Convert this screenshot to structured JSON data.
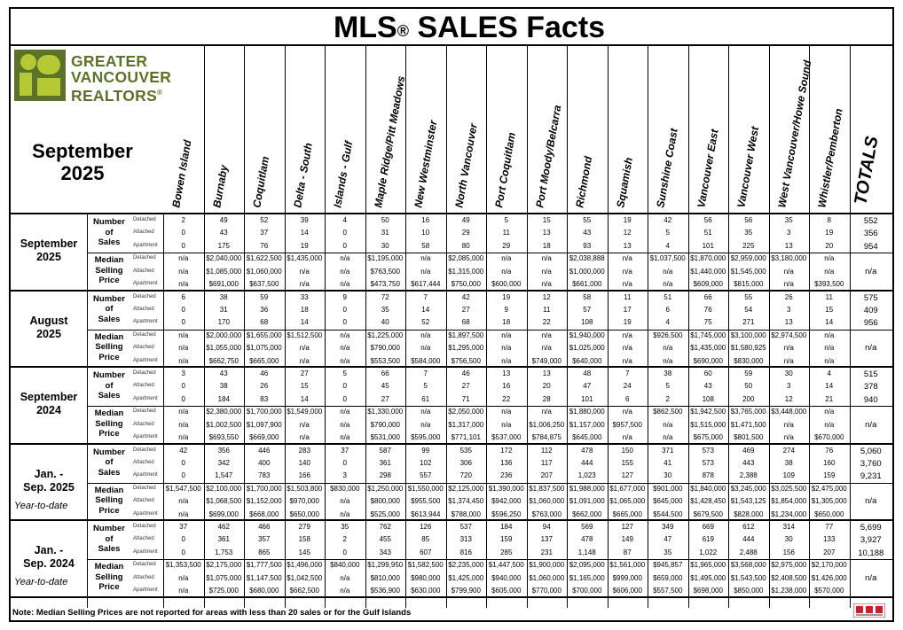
{
  "title": {
    "text": "MLS",
    "reg": "®",
    "rest": "SALES Facts"
  },
  "logo": {
    "line1": "GREATER",
    "line2": "VANCOUVER",
    "line3": "REALTORS",
    "reg": "®"
  },
  "period": {
    "month": "September",
    "year": "2025"
  },
  "columns": [
    "Bowen Island",
    "Burnaby",
    "Coquitlam",
    "Delta - South",
    "Islands - Gulf",
    "Maple Ridge/Pitt Meadows",
    "New Westminster",
    "North Vancouver",
    "Port Coquitlam",
    "Port Moody/Belcarra",
    "Richmond",
    "Squamish",
    "Sunshine Coast",
    "Vancouver East",
    "Vancouver West",
    "West Vancouver/Howe Sound",
    "Whistler/Pemberton"
  ],
  "totals_label": "TOTALS",
  "metric_labels": {
    "number": [
      "Number",
      "of",
      "Sales"
    ],
    "median": [
      "Median",
      "Selling",
      "Price"
    ]
  },
  "property_types": [
    "Detached",
    "Attached",
    "Apartment"
  ],
  "groups": [
    {
      "label": [
        "September",
        "2025"
      ],
      "ytd": "",
      "number": [
        [
          "2",
          "49",
          "52",
          "39",
          "4",
          "50",
          "16",
          "49",
          "5",
          "15",
          "55",
          "19",
          "42",
          "56",
          "56",
          "35",
          "8",
          "552"
        ],
        [
          "0",
          "43",
          "37",
          "14",
          "0",
          "31",
          "10",
          "29",
          "11",
          "13",
          "43",
          "12",
          "5",
          "51",
          "35",
          "3",
          "19",
          "356"
        ],
        [
          "0",
          "175",
          "76",
          "19",
          "0",
          "30",
          "58",
          "80",
          "29",
          "18",
          "93",
          "13",
          "4",
          "101",
          "225",
          "13",
          "20",
          "954"
        ]
      ],
      "median": [
        [
          "n/a",
          "$2,040,000",
          "$1,622,500",
          "$1,435,000",
          "n/a",
          "$1,195,000",
          "n/a",
          "$2,085,000",
          "n/a",
          "n/a",
          "$2,038,888",
          "n/a",
          "$1,037,500",
          "$1,870,000",
          "$2,959,000",
          "$3,180,000",
          "n/a",
          ""
        ],
        [
          "n/a",
          "$1,085,000",
          "$1,060,000",
          "n/a",
          "n/a",
          "$763,500",
          "n/a",
          "$1,315,000",
          "n/a",
          "n/a",
          "$1,000,000",
          "n/a",
          "n/a",
          "$1,440,000",
          "$1,545,000",
          "n/a",
          "n/a",
          "n/a"
        ],
        [
          "n/a",
          "$691,000",
          "$637,500",
          "n/a",
          "n/a",
          "$473,750",
          "$617,444",
          "$750,000",
          "$600,000",
          "n/a",
          "$661,000",
          "n/a",
          "n/a",
          "$609,000",
          "$815,000",
          "n/a",
          "$393,500",
          ""
        ]
      ]
    },
    {
      "label": [
        "August",
        "2025"
      ],
      "ytd": "",
      "number": [
        [
          "6",
          "38",
          "59",
          "33",
          "9",
          "72",
          "7",
          "42",
          "19",
          "12",
          "58",
          "11",
          "51",
          "66",
          "55",
          "26",
          "11",
          "575"
        ],
        [
          "0",
          "31",
          "36",
          "18",
          "0",
          "35",
          "14",
          "27",
          "9",
          "11",
          "57",
          "17",
          "6",
          "76",
          "54",
          "3",
          "15",
          "409"
        ],
        [
          "0",
          "170",
          "68",
          "14",
          "0",
          "40",
          "52",
          "68",
          "18",
          "22",
          "108",
          "19",
          "4",
          "75",
          "271",
          "13",
          "14",
          "956"
        ]
      ],
      "median": [
        [
          "n/a",
          "$2,000,000",
          "$1,655,000",
          "$1,512,500",
          "n/a",
          "$1,225,000",
          "n/a",
          "$1,897,500",
          "n/a",
          "n/a",
          "$1,940,000",
          "n/a",
          "$926,500",
          "$1,745,000",
          "$3,100,000",
          "$2,974,500",
          "n/a",
          ""
        ],
        [
          "n/a",
          "$1,055,000",
          "$1,075,000",
          "n/a",
          "n/a",
          "$790,000",
          "n/a",
          "$1,295,000",
          "n/a",
          "n/a",
          "$1,025,000",
          "n/a",
          "n/a",
          "$1,435,000",
          "$1,580,925",
          "n/a",
          "n/a",
          "n/a"
        ],
        [
          "n/a",
          "$662,750",
          "$665,000",
          "n/a",
          "n/a",
          "$553,500",
          "$584,000",
          "$756,500",
          "n/a",
          "$749,000",
          "$640,000",
          "n/a",
          "n/a",
          "$690,000",
          "$830,000",
          "n/a",
          "n/a",
          ""
        ]
      ]
    },
    {
      "label": [
        "September",
        "2024"
      ],
      "ytd": "",
      "number": [
        [
          "3",
          "43",
          "46",
          "27",
          "5",
          "66",
          "7",
          "46",
          "13",
          "13",
          "48",
          "7",
          "38",
          "60",
          "59",
          "30",
          "4",
          "515"
        ],
        [
          "0",
          "38",
          "26",
          "15",
          "0",
          "45",
          "5",
          "27",
          "16",
          "20",
          "47",
          "24",
          "5",
          "43",
          "50",
          "3",
          "14",
          "378"
        ],
        [
          "0",
          "184",
          "83",
          "14",
          "0",
          "27",
          "61",
          "71",
          "22",
          "28",
          "101",
          "6",
          "2",
          "108",
          "200",
          "12",
          "21",
          "940"
        ]
      ],
      "median": [
        [
          "n/a",
          "$2,380,000",
          "$1,700,000",
          "$1,549,000",
          "n/a",
          "$1,330,000",
          "n/a",
          "$2,050,000",
          "n/a",
          "n/a",
          "$1,880,000",
          "n/a",
          "$862,500",
          "$1,942,500",
          "$3,765,000",
          "$3,448,000",
          "n/a",
          ""
        ],
        [
          "n/a",
          "$1,002,500",
          "$1,097,900",
          "n/a",
          "n/a",
          "$790,000",
          "n/a",
          "$1,317,000",
          "n/a",
          "$1,006,250",
          "$1,157,000",
          "$957,500",
          "n/a",
          "$1,515,000",
          "$1,471,500",
          "n/a",
          "n/a",
          "n/a"
        ],
        [
          "n/a",
          "$693,550",
          "$669,000",
          "n/a",
          "n/a",
          "$531,000",
          "$595,000",
          "$771,101",
          "$537,000",
          "$784,875",
          "$645,000",
          "n/a",
          "n/a",
          "$675,000",
          "$801,500",
          "n/a",
          "$670,000",
          ""
        ]
      ]
    },
    {
      "label": [
        "Jan. -",
        "Sep. 2025"
      ],
      "ytd": "Year-to-date",
      "number": [
        [
          "42",
          "356",
          "446",
          "283",
          "37",
          "587",
          "99",
          "535",
          "172",
          "112",
          "478",
          "150",
          "371",
          "573",
          "469",
          "274",
          "76",
          "5,060"
        ],
        [
          "0",
          "342",
          "400",
          "140",
          "0",
          "361",
          "102",
          "306",
          "136",
          "117",
          "444",
          "155",
          "41",
          "573",
          "443",
          "38",
          "160",
          "3,760"
        ],
        [
          "0",
          "1,547",
          "783",
          "166",
          "3",
          "298",
          "557",
          "720",
          "236",
          "207",
          "1,023",
          "127",
          "30",
          "878",
          "2,388",
          "109",
          "159",
          "9,231"
        ]
      ],
      "median": [
        [
          "$1,547,500",
          "$2,100,000",
          "$1,700,000",
          "$1,503,800",
          "$830,000",
          "$1,250,000",
          "$1,550,000",
          "$2,125,000",
          "$1,390,000",
          "$1,837,500",
          "$1,988,000",
          "$1,677,000",
          "$901,000",
          "$1,840,000",
          "$3,245,000",
          "$3,025,500",
          "$2,475,000",
          ""
        ],
        [
          "n/a",
          "$1,068,500",
          "$1,152,000",
          "$970,000",
          "n/a",
          "$800,000",
          "$955,500",
          "$1,374,450",
          "$942,000",
          "$1,060,000",
          "$1,091,000",
          "$1,065,000",
          "$645,000",
          "$1,428,450",
          "$1,543,125",
          "$1,854,000",
          "$1,305,000",
          "n/a"
        ],
        [
          "n/a",
          "$699,000",
          "$668,000",
          "$650,000",
          "n/a",
          "$525,000",
          "$613,944",
          "$788,000",
          "$596,250",
          "$763,000",
          "$662,000",
          "$665,000",
          "$544,500",
          "$679,500",
          "$828,000",
          "$1,234,000",
          "$650,000",
          ""
        ]
      ]
    },
    {
      "label": [
        "Jan. -",
        "Sep. 2024"
      ],
      "ytd": "Year-to-date",
      "number": [
        [
          "37",
          "462",
          "466",
          "279",
          "35",
          "762",
          "126",
          "537",
          "184",
          "94",
          "569",
          "127",
          "349",
          "669",
          "612",
          "314",
          "77",
          "5,699"
        ],
        [
          "0",
          "361",
          "357",
          "158",
          "2",
          "455",
          "85",
          "313",
          "159",
          "137",
          "478",
          "149",
          "47",
          "619",
          "444",
          "30",
          "133",
          "3,927"
        ],
        [
          "0",
          "1,753",
          "865",
          "145",
          "0",
          "343",
          "607",
          "816",
          "285",
          "231",
          "1,148",
          "87",
          "35",
          "1,022",
          "2,488",
          "156",
          "207",
          "10,188"
        ]
      ],
      "median": [
        [
          "$1,353,500",
          "$2,175,000",
          "$1,777,500",
          "$1,496,000",
          "$840,000",
          "$1,299,950",
          "$1,582,500",
          "$2,235,000",
          "$1,447,500",
          "$1,900,000",
          "$2,095,000",
          "$1,561,000",
          "$945,857",
          "$1,965,000",
          "$3,568,000",
          "$2,975,000",
          "$2,170,000",
          ""
        ],
        [
          "n/a",
          "$1,075,000",
          "$1,147,500",
          "$1,042,500",
          "n/a",
          "$810,000",
          "$980,000",
          "$1,425,000",
          "$940,000",
          "$1,060,000",
          "$1,165,000",
          "$999,000",
          "$659,000",
          "$1,495,000",
          "$1,543,500",
          "$2,408,500",
          "$1,426,000",
          "n/a"
        ],
        [
          "n/a",
          "$725,000",
          "$680,000",
          "$662,500",
          "n/a",
          "$536,900",
          "$630,000",
          "$799,900",
          "$605,000",
          "$770,000",
          "$700,000",
          "$606,000",
          "$557,500",
          "$698,000",
          "$850,000",
          "$1,238,000",
          "$570,000",
          ""
        ]
      ]
    }
  ],
  "note": "Note: Median Selling Prices are not reported for areas with less than 20 sales or  for the Gulf Islands",
  "colors": {
    "logo_green": "#5d7229",
    "logo_lime": "#b5c934",
    "badge_red": "#c8202f"
  }
}
